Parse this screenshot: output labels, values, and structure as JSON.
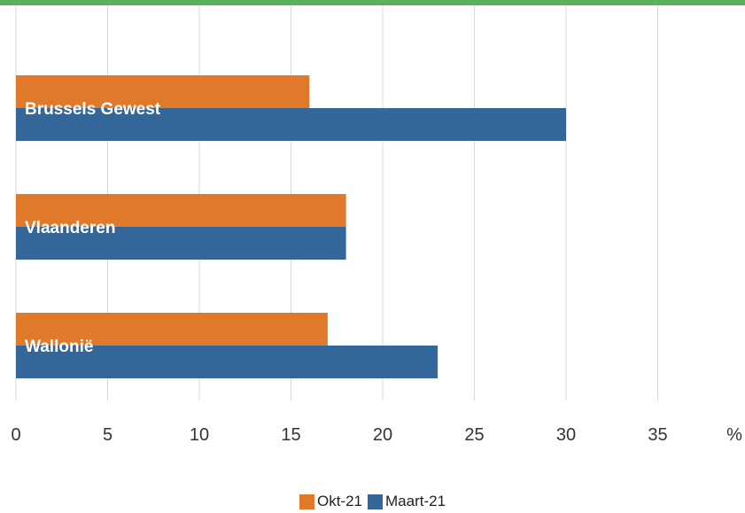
{
  "colors": {
    "top_bar": "#5bb15b",
    "okt": "#e07a2a",
    "maart": "#336699",
    "grid": "#d9d9d9"
  },
  "chart_data": {
    "type": "bar",
    "orientation": "horizontal",
    "categories": [
      "Brussels Gewest",
      "Vlaanderen",
      "Wallonië"
    ],
    "series": [
      {
        "name": "Okt-21",
        "values": [
          16,
          18,
          17
        ]
      },
      {
        "name": "Maart-21",
        "values": [
          30,
          18,
          23
        ]
      }
    ],
    "x_ticks": [
      "0",
      "5",
      "10",
      "15",
      "20",
      "25",
      "30",
      "35"
    ],
    "x_unit": "%",
    "xlim": [
      0,
      37.5
    ],
    "grid": "vertical",
    "legend_position": "bottom-center"
  }
}
